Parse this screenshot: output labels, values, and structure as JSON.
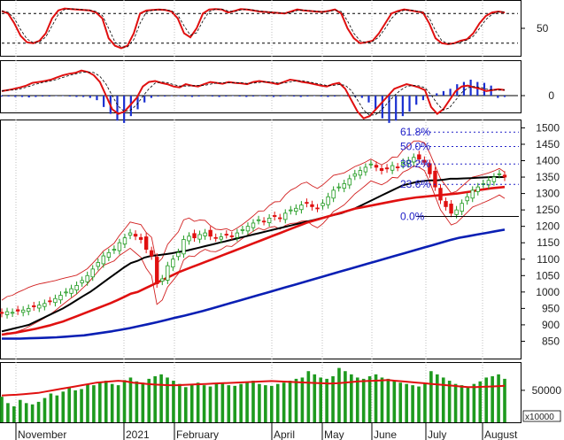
{
  "colors": {
    "price_up": "#1f9a1f",
    "price_down": "#e01010",
    "ma_black": "#000000",
    "ma_red": "#e01010",
    "ma_blue": "#0a1fb4",
    "bollinger": "#d22020",
    "fib_text": "#2020c8",
    "volume_bar": "#1e9a1e",
    "volume_ma": "#e01010",
    "macd_hist_neg": "#1a2fd0",
    "grid": "#bfbfbf"
  },
  "chart_data": [
    {
      "type": "line",
      "panel": "oscillator",
      "y_ticks": [
        50
      ],
      "ylim": [
        0,
        100
      ],
      "dashed_levels": [
        80,
        20
      ],
      "series": [
        {
          "values": [
            85,
            80,
            60,
            35,
            22,
            20,
            25,
            40,
            70,
            86,
            90,
            89,
            88,
            87,
            86,
            82,
            70,
            30,
            15,
            10,
            15,
            40,
            80,
            86,
            87,
            88,
            87,
            84,
            70,
            40,
            32,
            50,
            80,
            88,
            89,
            88,
            82,
            85,
            89,
            88,
            86,
            84,
            83,
            82,
            81,
            80,
            84,
            88,
            86,
            85,
            84,
            83,
            85,
            88,
            80,
            50,
            30,
            20,
            22,
            25,
            40,
            60,
            80,
            85,
            88,
            86,
            84,
            82,
            60,
            30,
            20,
            18,
            20,
            25,
            28,
            40,
            60,
            75,
            82,
            84,
            82
          ]
        }
      ]
    },
    {
      "type": "bar",
      "panel": "macd",
      "y_ticks": [
        0
      ],
      "ylim": [
        -70,
        70
      ],
      "series": [
        {
          "values": [
            10,
            12,
            15,
            18,
            22,
            28,
            30,
            32,
            35,
            40,
            45,
            48,
            50,
            55,
            52,
            45,
            30,
            0,
            -30,
            -40,
            -35,
            -20,
            -5,
            20,
            30,
            32,
            28,
            25,
            20,
            18,
            25,
            22,
            20,
            25,
            30,
            28,
            26,
            30,
            28,
            27,
            25,
            30,
            32,
            30,
            28,
            25,
            30,
            35,
            33,
            30,
            28,
            25,
            22,
            20,
            25,
            28,
            15,
            -10,
            -35,
            -50,
            -45,
            -30,
            -15,
            0,
            15,
            20,
            25,
            22,
            18,
            12,
            -25,
            -40,
            -30,
            -10,
            10,
            20,
            22,
            18,
            15,
            10,
            12,
            14,
            12
          ]
        },
        {
          "values": [
            -2,
            -2,
            -3,
            -3,
            -4,
            -3,
            -2,
            -2,
            -1,
            -1,
            -2,
            -3,
            -3,
            -5,
            -10,
            -25,
            -40,
            -55,
            -60,
            -45,
            -30,
            -15,
            -5,
            -2,
            -2,
            -1,
            -1,
            -2,
            -3,
            -2,
            -1,
            -2,
            -3,
            -2,
            -1,
            -2,
            -3,
            -2,
            -1,
            -2,
            -3,
            -2,
            -1,
            -2,
            -3,
            -2,
            -1,
            -2,
            -3,
            -2,
            -1,
            -2,
            -3,
            -5,
            -15,
            -30,
            -50,
            -60,
            -55,
            -45,
            -35,
            -20,
            -10,
            -2,
            5,
            10,
            15,
            25,
            30,
            35,
            30,
            28,
            22,
            -5,
            -3
          ]
        }
      ]
    },
    {
      "type": "candlestick",
      "panel": "price",
      "y_ticks": [
        850,
        900,
        950,
        1000,
        1050,
        1100,
        1150,
        1200,
        1250,
        1300,
        1350,
        1400,
        1450,
        1500
      ],
      "ylim": [
        800,
        1520
      ],
      "x_labels": [
        "November",
        "2021",
        "February",
        "April",
        "May",
        "June",
        "July",
        "August"
      ],
      "fibonacci": [
        {
          "label": "61.8%",
          "value": 1487
        },
        {
          "label": "50.0%",
          "value": 1443
        },
        {
          "label": "38.2%",
          "value": 1390
        },
        {
          "label": "23.6%",
          "value": 1328
        },
        {
          "label": "0.0%",
          "value": 1230
        }
      ],
      "close": [
        935,
        940,
        938,
        942,
        945,
        950,
        955,
        960,
        965,
        972,
        980,
        990,
        1000,
        1010,
        1020,
        1035,
        1050,
        1070,
        1090,
        1110,
        1120,
        1130,
        1150,
        1165,
        1180,
        1170,
        1160,
        1130,
        1110,
        1025,
        1040,
        1080,
        1100,
        1120,
        1160,
        1170,
        1165,
        1175,
        1180,
        1170,
        1165,
        1168,
        1175,
        1170,
        1180,
        1190,
        1200,
        1210,
        1220,
        1215,
        1225,
        1230,
        1225,
        1240,
        1250,
        1255,
        1265,
        1270,
        1260,
        1255,
        1270,
        1290,
        1310,
        1320,
        1330,
        1345,
        1360,
        1370,
        1380,
        1390,
        1380,
        1370,
        1375,
        1385,
        1380,
        1395,
        1400,
        1410,
        1405,
        1395,
        1360,
        1320,
        1280,
        1260,
        1240,
        1250,
        1270,
        1290,
        1310,
        1320,
        1330,
        1340,
        1350,
        1360,
        1350
      ],
      "series": [
        {
          "name": "ma_black",
          "values": [
            880,
            885,
            890,
            895,
            900,
            910,
            920,
            930,
            940,
            950,
            962,
            975,
            988,
            1000,
            1015,
            1030,
            1045,
            1060,
            1075,
            1088,
            1095,
            1105,
            1110,
            1112,
            1115,
            1118,
            1122,
            1125,
            1130,
            1135,
            1140,
            1145,
            1150,
            1155,
            1160,
            1165,
            1170,
            1175,
            1180,
            1185,
            1190,
            1195,
            1200,
            1205,
            1210,
            1215,
            1220,
            1225,
            1230,
            1235,
            1240,
            1248,
            1255,
            1265,
            1275,
            1285,
            1295,
            1305,
            1315,
            1325,
            1330,
            1335,
            1338,
            1340,
            1340,
            1342,
            1345,
            1345,
            1346,
            1347,
            1348,
            1349,
            1350,
            1350,
            1350
          ]
        },
        {
          "name": "ma_red",
          "values": [
            870,
            873,
            876,
            880,
            884,
            888,
            893,
            898,
            904,
            910,
            918,
            926,
            934,
            942,
            950,
            958,
            966,
            975,
            985,
            995,
            1000,
            1010,
            1020,
            1030,
            1040,
            1050,
            1060,
            1068,
            1076,
            1084,
            1092,
            1100,
            1108,
            1116,
            1124,
            1132,
            1140,
            1148,
            1156,
            1164,
            1172,
            1180,
            1188,
            1196,
            1204,
            1212,
            1218,
            1224,
            1230,
            1236,
            1242,
            1248,
            1254,
            1258,
            1262,
            1266,
            1270,
            1274,
            1278,
            1282,
            1285,
            1288,
            1290,
            1292,
            1294,
            1296,
            1298,
            1300,
            1303,
            1306,
            1310,
            1313,
            1316,
            1318,
            1320
          ]
        },
        {
          "name": "ma_blue",
          "values": [
            858,
            858,
            858,
            859,
            860,
            861,
            862,
            864,
            866,
            868,
            872,
            876,
            880,
            885,
            890,
            896,
            902,
            908,
            915,
            922,
            928,
            935,
            942,
            950,
            958,
            966,
            974,
            982,
            990,
            998,
            1006,
            1014,
            1022,
            1030,
            1038,
            1046,
            1054,
            1062,
            1070,
            1078,
            1086,
            1094,
            1102,
            1110,
            1118,
            1126,
            1134,
            1142,
            1150,
            1158,
            1165,
            1170,
            1175,
            1180,
            1185,
            1190
          ]
        }
      ]
    },
    {
      "type": "bar",
      "panel": "volume",
      "y_ticks": [
        50000
      ],
      "unit": "x10000",
      "series": [
        {
          "values": [
            40000,
            30000,
            25000,
            35000,
            30000,
            28000,
            32000,
            38000,
            45000,
            42000,
            48000,
            55000,
            50000,
            52000,
            60000,
            58000,
            62000,
            65000,
            60000,
            58000,
            66000,
            70000,
            64000,
            62000,
            68000,
            72000,
            75000,
            70000,
            65000,
            60000,
            55000,
            60000,
            62000,
            58000,
            56000,
            60000,
            62000,
            58000,
            57000,
            60000,
            62000,
            65000,
            60000,
            58000,
            57000,
            60000,
            62000,
            65000,
            68000,
            70000,
            80000,
            75000,
            70000,
            68000,
            72000,
            85000,
            80000,
            75000,
            70000,
            68000,
            72000,
            75000,
            70000,
            68000,
            65000,
            62000,
            60000,
            58000,
            56000,
            62000,
            80000,
            75000,
            70000,
            65000,
            60000,
            58000,
            56000,
            60000,
            64000,
            70000,
            72000,
            75000,
            68000
          ]
        },
        {
          "values": [
            42000,
            42500,
            43000,
            44000,
            45000,
            46000,
            48000,
            50000,
            52000,
            54000,
            56000,
            58000,
            60000,
            62000,
            63000,
            64000,
            65000,
            64000,
            62000,
            61000,
            60000,
            59000,
            58500,
            58000,
            58000,
            58500,
            59000,
            59500,
            60000,
            60500,
            61000,
            61500,
            62000,
            62500,
            63000,
            63500,
            64000,
            64500,
            64000,
            63500,
            63000,
            62500,
            62000,
            61500,
            61000,
            60500,
            61000,
            62000,
            63000,
            64000,
            64500,
            65000,
            65500,
            66000,
            65000,
            64000,
            63000,
            62000,
            61000,
            60000,
            59000,
            58000,
            57000,
            56000,
            55000,
            55000,
            55500,
            56000,
            56500,
            57000
          ]
        }
      ]
    }
  ]
}
